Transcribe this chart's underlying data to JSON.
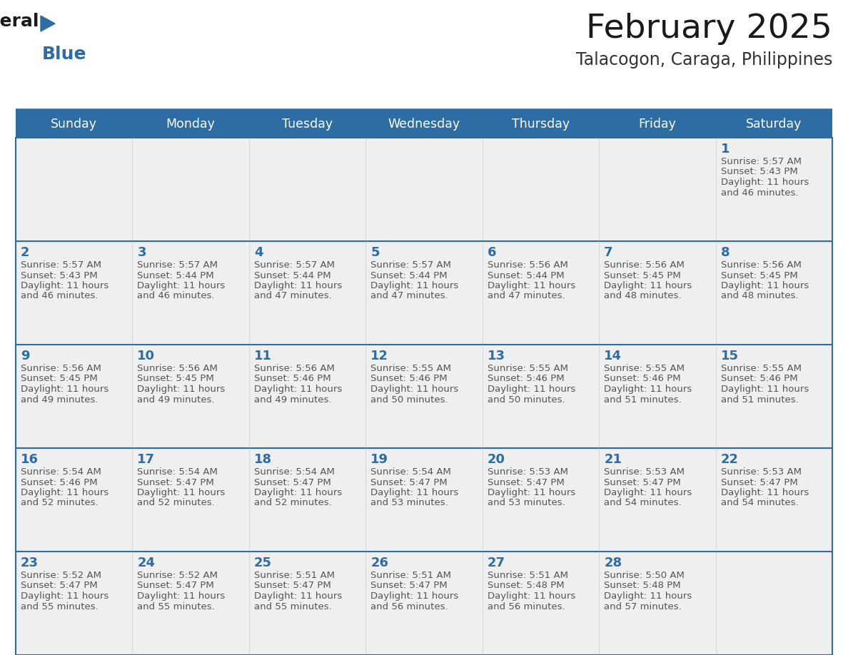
{
  "title": "February 2025",
  "subtitle": "Talacogon, Caraga, Philippines",
  "days_of_week": [
    "Sunday",
    "Monday",
    "Tuesday",
    "Wednesday",
    "Thursday",
    "Friday",
    "Saturday"
  ],
  "header_bg": "#2E6DA4",
  "header_text": "#FFFFFF",
  "cell_bg": "#EFEFEF",
  "border_color": "#2E6DA4",
  "day_num_color": "#2E6DA4",
  "text_color": "#555555",
  "title_color": "#1A1A1A",
  "subtitle_color": "#333333",
  "calendar_data": [
    [
      null,
      null,
      null,
      null,
      null,
      null,
      {
        "day": "1",
        "sunrise": "5:57 AM",
        "sunset": "5:43 PM",
        "daylight_h": "11 hours",
        "daylight_m": "46 minutes."
      }
    ],
    [
      {
        "day": "2",
        "sunrise": "5:57 AM",
        "sunset": "5:43 PM",
        "daylight_h": "11 hours",
        "daylight_m": "46 minutes."
      },
      {
        "day": "3",
        "sunrise": "5:57 AM",
        "sunset": "5:44 PM",
        "daylight_h": "11 hours",
        "daylight_m": "46 minutes."
      },
      {
        "day": "4",
        "sunrise": "5:57 AM",
        "sunset": "5:44 PM",
        "daylight_h": "11 hours",
        "daylight_m": "47 minutes."
      },
      {
        "day": "5",
        "sunrise": "5:57 AM",
        "sunset": "5:44 PM",
        "daylight_h": "11 hours",
        "daylight_m": "47 minutes."
      },
      {
        "day": "6",
        "sunrise": "5:56 AM",
        "sunset": "5:44 PM",
        "daylight_h": "11 hours",
        "daylight_m": "47 minutes."
      },
      {
        "day": "7",
        "sunrise": "5:56 AM",
        "sunset": "5:45 PM",
        "daylight_h": "11 hours",
        "daylight_m": "48 minutes."
      },
      {
        "day": "8",
        "sunrise": "5:56 AM",
        "sunset": "5:45 PM",
        "daylight_h": "11 hours",
        "daylight_m": "48 minutes."
      }
    ],
    [
      {
        "day": "9",
        "sunrise": "5:56 AM",
        "sunset": "5:45 PM",
        "daylight_h": "11 hours",
        "daylight_m": "49 minutes."
      },
      {
        "day": "10",
        "sunrise": "5:56 AM",
        "sunset": "5:45 PM",
        "daylight_h": "11 hours",
        "daylight_m": "49 minutes."
      },
      {
        "day": "11",
        "sunrise": "5:56 AM",
        "sunset": "5:46 PM",
        "daylight_h": "11 hours",
        "daylight_m": "49 minutes."
      },
      {
        "day": "12",
        "sunrise": "5:55 AM",
        "sunset": "5:46 PM",
        "daylight_h": "11 hours",
        "daylight_m": "50 minutes."
      },
      {
        "day": "13",
        "sunrise": "5:55 AM",
        "sunset": "5:46 PM",
        "daylight_h": "11 hours",
        "daylight_m": "50 minutes."
      },
      {
        "day": "14",
        "sunrise": "5:55 AM",
        "sunset": "5:46 PM",
        "daylight_h": "11 hours",
        "daylight_m": "51 minutes."
      },
      {
        "day": "15",
        "sunrise": "5:55 AM",
        "sunset": "5:46 PM",
        "daylight_h": "11 hours",
        "daylight_m": "51 minutes."
      }
    ],
    [
      {
        "day": "16",
        "sunrise": "5:54 AM",
        "sunset": "5:46 PM",
        "daylight_h": "11 hours",
        "daylight_m": "52 minutes."
      },
      {
        "day": "17",
        "sunrise": "5:54 AM",
        "sunset": "5:47 PM",
        "daylight_h": "11 hours",
        "daylight_m": "52 minutes."
      },
      {
        "day": "18",
        "sunrise": "5:54 AM",
        "sunset": "5:47 PM",
        "daylight_h": "11 hours",
        "daylight_m": "52 minutes."
      },
      {
        "day": "19",
        "sunrise": "5:54 AM",
        "sunset": "5:47 PM",
        "daylight_h": "11 hours",
        "daylight_m": "53 minutes."
      },
      {
        "day": "20",
        "sunrise": "5:53 AM",
        "sunset": "5:47 PM",
        "daylight_h": "11 hours",
        "daylight_m": "53 minutes."
      },
      {
        "day": "21",
        "sunrise": "5:53 AM",
        "sunset": "5:47 PM",
        "daylight_h": "11 hours",
        "daylight_m": "54 minutes."
      },
      {
        "day": "22",
        "sunrise": "5:53 AM",
        "sunset": "5:47 PM",
        "daylight_h": "11 hours",
        "daylight_m": "54 minutes."
      }
    ],
    [
      {
        "day": "23",
        "sunrise": "5:52 AM",
        "sunset": "5:47 PM",
        "daylight_h": "11 hours",
        "daylight_m": "55 minutes."
      },
      {
        "day": "24",
        "sunrise": "5:52 AM",
        "sunset": "5:47 PM",
        "daylight_h": "11 hours",
        "daylight_m": "55 minutes."
      },
      {
        "day": "25",
        "sunrise": "5:51 AM",
        "sunset": "5:47 PM",
        "daylight_h": "11 hours",
        "daylight_m": "55 minutes."
      },
      {
        "day": "26",
        "sunrise": "5:51 AM",
        "sunset": "5:47 PM",
        "daylight_h": "11 hours",
        "daylight_m": "56 minutes."
      },
      {
        "day": "27",
        "sunrise": "5:51 AM",
        "sunset": "5:48 PM",
        "daylight_h": "11 hours",
        "daylight_m": "56 minutes."
      },
      {
        "day": "28",
        "sunrise": "5:50 AM",
        "sunset": "5:48 PM",
        "daylight_h": "11 hours",
        "daylight_m": "57 minutes."
      },
      null
    ]
  ],
  "logo_text1": "General",
  "logo_text2": "Blue",
  "logo_color1": "#1A1A1A",
  "logo_color2": "#2E6DA4",
  "logo_triangle_color": "#2E6DA4",
  "fig_width": 11.88,
  "fig_height": 9.18,
  "dpi": 100
}
